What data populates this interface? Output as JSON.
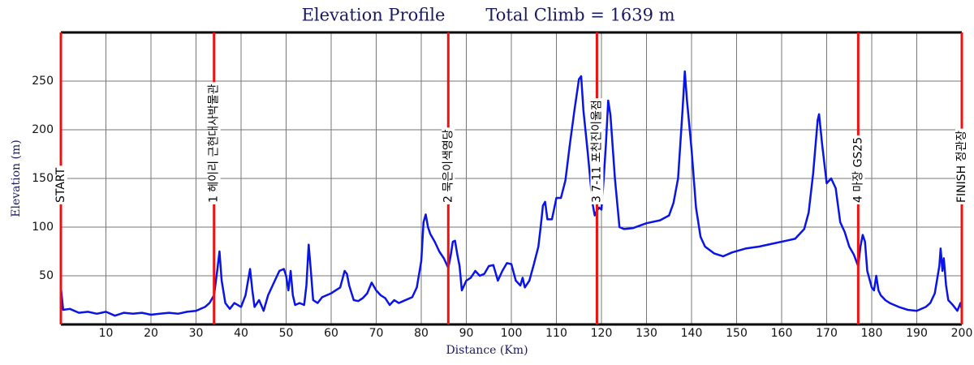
{
  "chart_data": {
    "type": "line",
    "title": "Elevation Profile",
    "subtitle": "Total Climb = 1639 m",
    "x_label": "Distance (Km)",
    "y_label": "Elevation (m)",
    "xlim": [
      0,
      200
    ],
    "ylim": [
      0,
      300
    ],
    "xticks": [
      10,
      20,
      30,
      40,
      50,
      60,
      70,
      80,
      90,
      100,
      110,
      120,
      130,
      140,
      150,
      160,
      170,
      180,
      190,
      200
    ],
    "yticks": [
      50,
      100,
      150,
      200,
      250
    ],
    "grid": true,
    "x": [
      0,
      0.5,
      2,
      4,
      6,
      8,
      10,
      12,
      14,
      16,
      18,
      20,
      22,
      24,
      26,
      28,
      30,
      32,
      33,
      34,
      34.7,
      35.2,
      35.7,
      36.5,
      37.5,
      38.5,
      40,
      41,
      42,
      42.5,
      43,
      44,
      45,
      46,
      47.5,
      48.5,
      49.5,
      50,
      50.5,
      51,
      51.5,
      52,
      53,
      54,
      54.5,
      55,
      55.5,
      56,
      57,
      58,
      60,
      62,
      63,
      63.5,
      64,
      65,
      66,
      67,
      68,
      69,
      70,
      71,
      72,
      73,
      74,
      75,
      76,
      78,
      79,
      80,
      80.5,
      81,
      81.5,
      82,
      83,
      84,
      85,
      86,
      86.5,
      87,
      87.5,
      88,
      88.5,
      89,
      90,
      91,
      92,
      93,
      94,
      95,
      96,
      97,
      98,
      99,
      100,
      101,
      102,
      102.5,
      103,
      104,
      105,
      106,
      106.5,
      107,
      107.5,
      108,
      109,
      110,
      111,
      112,
      113,
      114,
      115,
      115.5,
      116,
      117,
      118,
      118.5,
      119,
      119.5,
      120,
      120.5,
      121,
      121.5,
      122,
      123,
      124,
      125,
      127,
      130,
      133,
      135,
      136,
      137,
      138,
      138.5,
      139,
      140,
      141,
      142,
      143,
      145,
      147,
      149,
      152,
      155,
      158,
      161,
      163,
      165,
      166,
      167,
      168,
      168.3,
      169,
      170,
      171,
      172,
      173,
      174,
      175,
      176,
      177,
      177.5,
      178,
      178.5,
      179,
      180,
      180.5,
      181,
      181.5,
      182,
      183,
      184,
      186,
      188,
      190,
      192,
      193,
      194,
      195,
      195.3,
      195.7,
      196,
      196.5,
      197,
      198,
      199,
      199.7,
      200
    ],
    "series": [
      {
        "color": "#0a14e6",
        "values": [
          38,
          15,
          16,
          12,
          13,
          11,
          13,
          9,
          12,
          11,
          12,
          10,
          11,
          12,
          11,
          13,
          14,
          18,
          22,
          30,
          55,
          75,
          45,
          22,
          16,
          22,
          18,
          30,
          57,
          35,
          18,
          25,
          14,
          30,
          45,
          55,
          57,
          50,
          35,
          55,
          30,
          20,
          22,
          20,
          40,
          82,
          55,
          25,
          22,
          28,
          32,
          38,
          55,
          52,
          40,
          25,
          24,
          27,
          32,
          43,
          35,
          30,
          27,
          20,
          25,
          22,
          24,
          28,
          38,
          65,
          105,
          113,
          100,
          93,
          85,
          75,
          68,
          58,
          70,
          85,
          86,
          72,
          60,
          35,
          45,
          48,
          55,
          50,
          52,
          60,
          61,
          45,
          55,
          63,
          62,
          45,
          40,
          48,
          38,
          45,
          62,
          80,
          100,
          122,
          126,
          108,
          108,
          130,
          130,
          148,
          185,
          220,
          252,
          255,
          220,
          175,
          125,
          112,
          117,
          120,
          118,
          150,
          185,
          230,
          215,
          150,
          100,
          98,
          99,
          104,
          107,
          112,
          125,
          150,
          220,
          260,
          230,
          180,
          120,
          90,
          80,
          73,
          70,
          74,
          78,
          80,
          83,
          86,
          88,
          98,
          115,
          155,
          210,
          216,
          185,
          145,
          150,
          140,
          105,
          95,
          80,
          72,
          60,
          80,
          92,
          85,
          55,
          38,
          35,
          50,
          35,
          30,
          25,
          22,
          18,
          15,
          14,
          18,
          22,
          32,
          60,
          78,
          55,
          68,
          40,
          25,
          20,
          14,
          22,
          15
        ]
      }
    ],
    "markers": {
      "color": "#ee1111",
      "items": [
        {
          "x": 0,
          "label": "START"
        },
        {
          "x": 34,
          "label": "1 헤이리 근현대사박물관"
        },
        {
          "x": 86,
          "label": "2 묵은이색영당"
        },
        {
          "x": 119,
          "label": "3 7-11 포천진이울점"
        },
        {
          "x": 177,
          "label": "4 마장 GS25"
        },
        {
          "x": 200,
          "label": "FINISH 정관장"
        }
      ]
    }
  }
}
